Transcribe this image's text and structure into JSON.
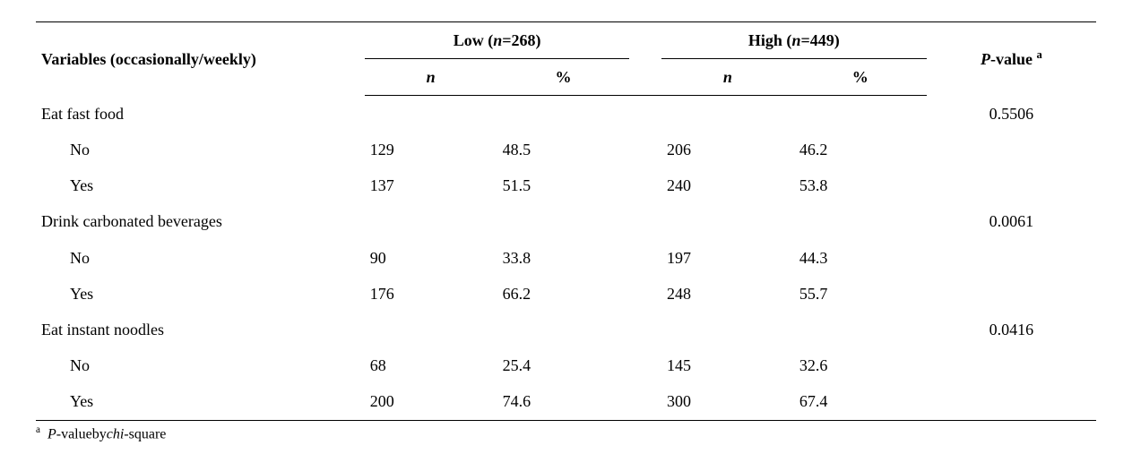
{
  "header": {
    "variables_label": "Variables (occasionally/weekly)",
    "low_label_pre": "Low (",
    "low_label_n": "n",
    "low_label_post": "=268)",
    "high_label_pre": "High (",
    "high_label_n": "n",
    "high_label_post": "=449)",
    "pvalue_pre": "P",
    "pvalue_post": "-value",
    "pvalue_sup": "a",
    "sub_n": "n",
    "sub_pct": "%"
  },
  "groups": [
    {
      "label": "Eat fast food",
      "pvalue": "0.5506",
      "rows": [
        {
          "label": "No",
          "low_n": "129",
          "low_pct": "48.5",
          "high_n": "206",
          "high_pct": "46.2"
        },
        {
          "label": "Yes",
          "low_n": "137",
          "low_pct": "51.5",
          "high_n": "240",
          "high_pct": "53.8"
        }
      ]
    },
    {
      "label": "Drink carbonated beverages",
      "pvalue": "0.0061",
      "rows": [
        {
          "label": "No",
          "low_n": "90",
          "low_pct": "33.8",
          "high_n": "197",
          "high_pct": "44.3"
        },
        {
          "label": "Yes",
          "low_n": "176",
          "low_pct": "66.2",
          "high_n": "248",
          "high_pct": "55.7"
        }
      ]
    },
    {
      "label": "Eat instant noodles",
      "pvalue": "0.0416",
      "rows": [
        {
          "label": "No",
          "low_n": "68",
          "low_pct": "25.4",
          "high_n": "145",
          "high_pct": "32.6"
        },
        {
          "label": "Yes",
          "low_n": "200",
          "low_pct": "74.6",
          "high_n": "300",
          "high_pct": "67.4"
        }
      ]
    }
  ],
  "footnote": {
    "sup": "a",
    "pre": "P",
    "mid": "-valueby",
    "chi": "chi",
    "post": "-square"
  }
}
